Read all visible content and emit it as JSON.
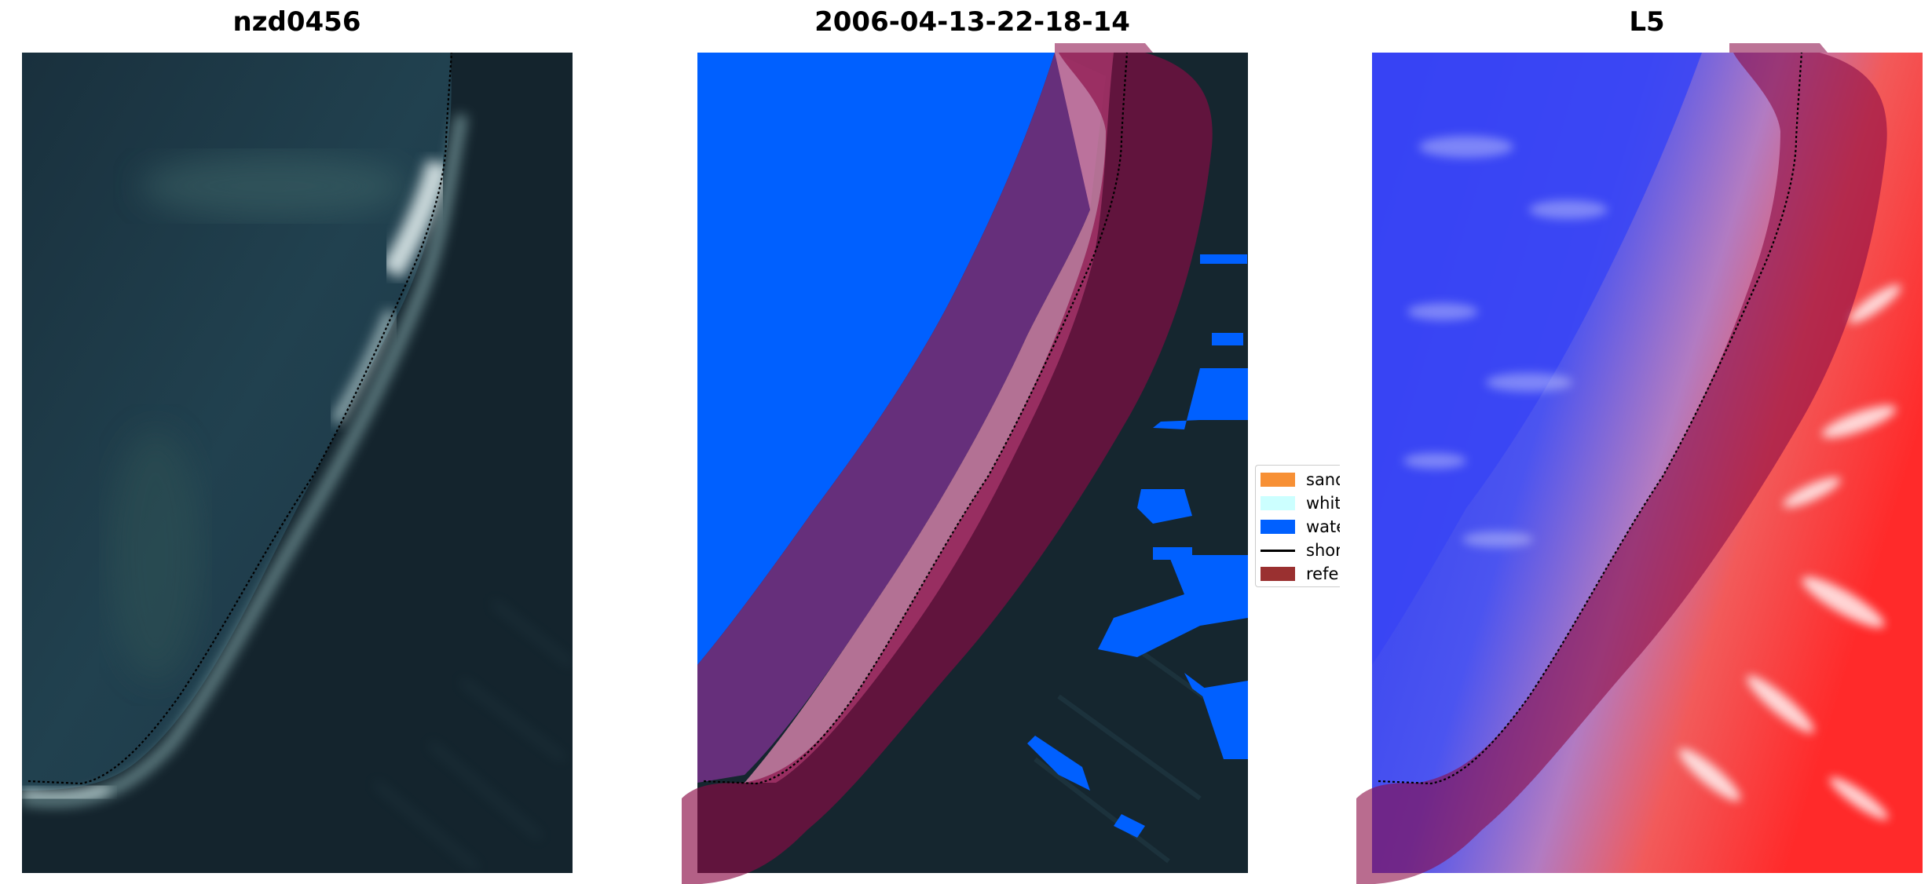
{
  "panels": [
    {
      "title": "nzd0456"
    },
    {
      "title": "2006-04-13-22-18-14"
    },
    {
      "title": "L5"
    }
  ],
  "legend": {
    "items": [
      {
        "label": "sand",
        "color": "#f79035",
        "kind": "patch"
      },
      {
        "label": "whitewater",
        "color": "#ccffff",
        "kind": "patch"
      },
      {
        "label": "water",
        "color": "#0060ff",
        "kind": "patch"
      },
      {
        "label": "shoreline",
        "color": "#000000",
        "kind": "line"
      },
      {
        "label": "reference",
        "color": "#9a3030",
        "kind": "patch"
      }
    ]
  },
  "colors": {
    "water_class": "#0060ff",
    "buffer_overlay": "#8b0a45",
    "ocean_dark": "#15262f",
    "sea_blue": "#1d3a4b"
  }
}
